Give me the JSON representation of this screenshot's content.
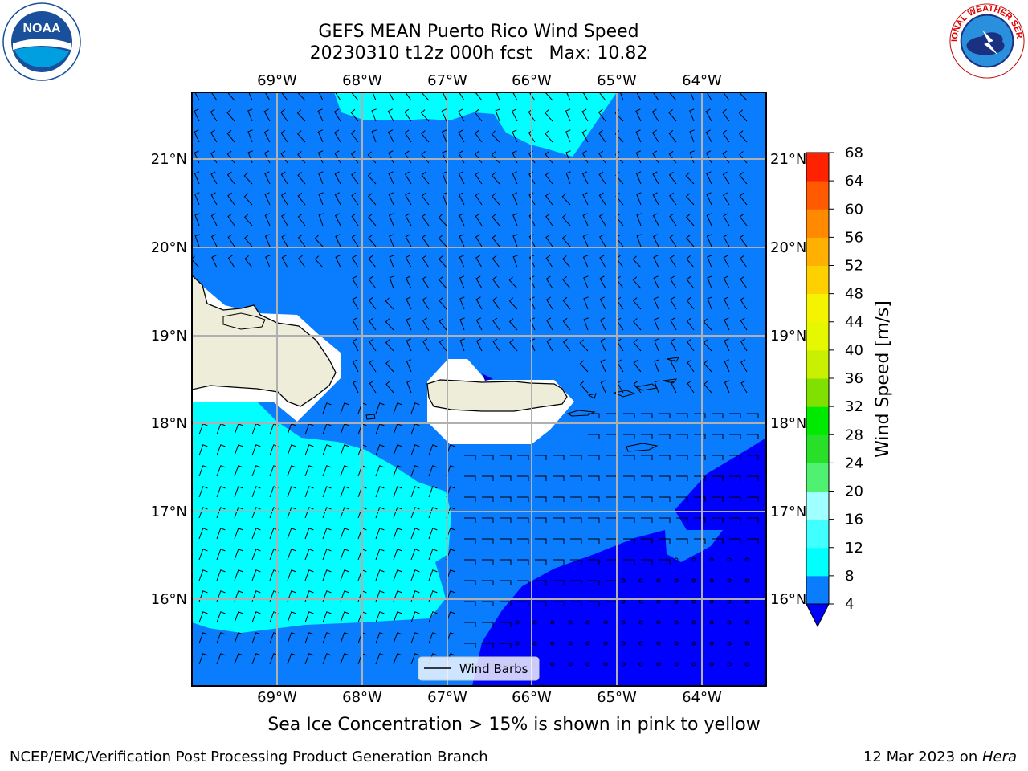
{
  "title": {
    "line1": "GEFS MEAN Puerto Rico Wind Speed",
    "line2": "20230310 t12z 000h fcst   Max: 10.82"
  },
  "map": {
    "lon_labels": [
      "69°W",
      "68°W",
      "67°W",
      "66°W",
      "65°W",
      "64°W"
    ],
    "lat_labels": [
      "21°N",
      "20°N",
      "19°N",
      "18°N",
      "17°N",
      "16°N"
    ],
    "legend_label": "Wind Barbs",
    "colors": {
      "level_4_8": "#0a7dff",
      "level_8_12": "#00ffff",
      "level_below_4": "#0000ff",
      "land": "#eeedda",
      "grid": "#b0b0b0"
    }
  },
  "colorbar": {
    "label": "Wind Speed [m/s]",
    "ticks": [
      "4",
      "8",
      "12",
      "16",
      "20",
      "24",
      "28",
      "32",
      "36",
      "40",
      "44",
      "48",
      "52",
      "56",
      "60",
      "64",
      "68"
    ],
    "colors": [
      "#0a7dff",
      "#00ffff",
      "#40ffff",
      "#a0ffff",
      "#50f070",
      "#28e028",
      "#00ea00",
      "#80e000",
      "#c8f000",
      "#e6f800",
      "#f4f400",
      "#ffd000",
      "#ffb000",
      "#ff8a00",
      "#ff5a00",
      "#ff2200"
    ],
    "extend_color": "#0000ff"
  },
  "footer": {
    "note": "Sea Ice Concentration > 15% is shown in pink to yellow",
    "credit": "NCEP/EMC/Verification Post Processing Product Generation Branch",
    "date_prefix": "12 Mar 2023 on ",
    "host": "Hera"
  },
  "logos": {
    "left": "NOAA",
    "right": "NATIONAL WEATHER SERVICE"
  }
}
